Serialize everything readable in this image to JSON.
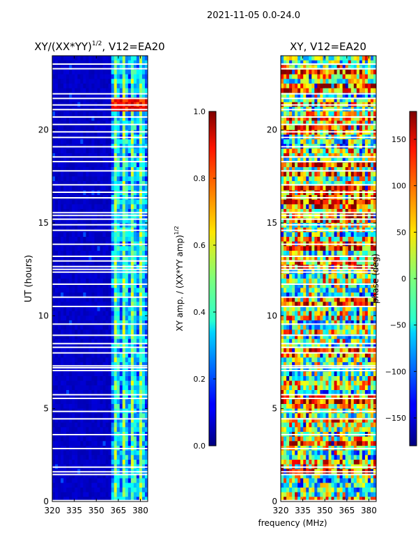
{
  "figure": {
    "suptitle": "2021-11-05 0.0-24.0",
    "xlabel_shared": "frequency (MHz)"
  },
  "chart_data": [
    {
      "type": "heatmap",
      "title_main": "XY/(XX*YY)",
      "title_sup": "1/2",
      "title_tail": ", V12=EA20",
      "xlabel": "frequency (MHz)",
      "ylabel": "UT (hours)",
      "xlim": [
        320,
        385
      ],
      "ylim": [
        0,
        24
      ],
      "xticks": [
        320,
        335,
        350,
        365,
        380
      ],
      "yticks": [
        0,
        5,
        10,
        15,
        20
      ],
      "colorbar": {
        "label_main": "XY amp. / (XX*YY amp)",
        "label_sup": "1/2",
        "range": [
          0.0,
          1.0
        ],
        "ticks": [
          "0.0",
          "0.2",
          "0.4",
          "0.6",
          "0.8",
          "1.0"
        ],
        "colormap": "jet"
      },
      "description_bands": [
        {
          "freq_start": 320,
          "freq_end": 361,
          "typical_value": 0.05
        },
        {
          "freq_start": 361,
          "freq_end": 385,
          "typical_value": 0.45
        }
      ]
    },
    {
      "type": "heatmap",
      "title": "XY, V12=EA20",
      "xlabel": "frequency (MHz)",
      "ylabel": "",
      "xlim": [
        320,
        385
      ],
      "ylim": [
        0,
        24
      ],
      "xticks": [
        320,
        335,
        350,
        365,
        380
      ],
      "yticks": [
        0,
        5,
        10,
        15,
        20
      ],
      "colorbar": {
        "label": "phase (deg)",
        "range": [
          -180,
          180
        ],
        "ticks": [
          "-150",
          "-100",
          "-50",
          "0",
          "50",
          "100",
          "150"
        ],
        "colormap": "jet"
      }
    }
  ],
  "flagged_hours": [
    0.05,
    1.45,
    1.6,
    1.85,
    2.85,
    3.6,
    4.45,
    4.85,
    5.55,
    5.75,
    7.05,
    7.2,
    7.3,
    8.0,
    8.3,
    8.5,
    8.95,
    9.55,
    10.5,
    11.0,
    11.7,
    12.35,
    12.5,
    12.65,
    12.95,
    13.2,
    13.85,
    14.6,
    14.9,
    15.2,
    15.4,
    15.55,
    16.35,
    16.65,
    17.05,
    17.8,
    18.3,
    18.55,
    19.1,
    19.6,
    19.9,
    20.3,
    20.7,
    21.1,
    21.35,
    21.7,
    21.95,
    23.3,
    23.55
  ]
}
